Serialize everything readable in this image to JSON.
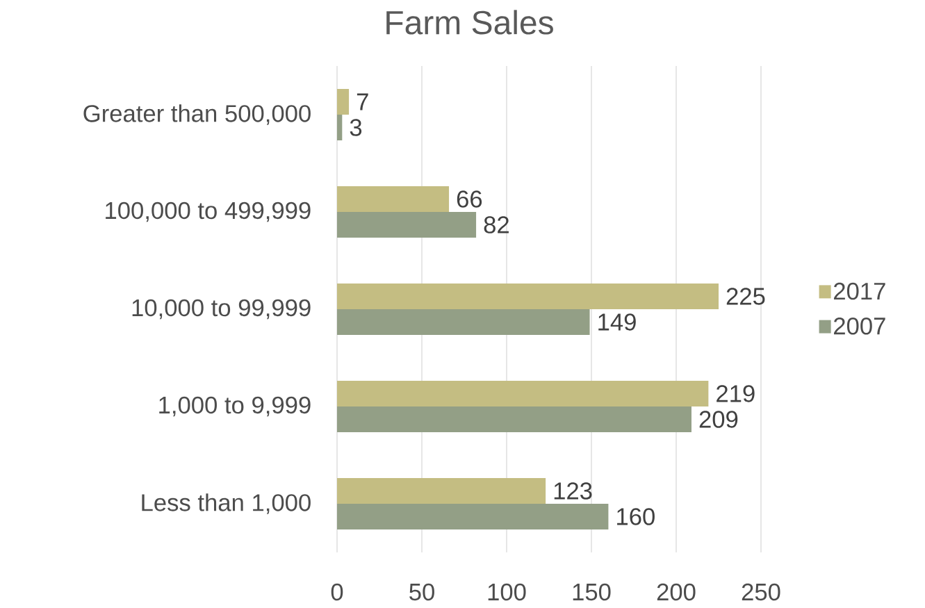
{
  "chart_data": {
    "type": "bar",
    "orientation": "horizontal",
    "title": "Farm Sales",
    "categories": [
      "Greater than 500,000",
      "100,000 to 499,999",
      "10,000 to 99,999",
      "1,000 to 9,999",
      "Less than 1,000"
    ],
    "series": [
      {
        "name": "2017",
        "color": "#c4bd82",
        "values": [
          7,
          66,
          225,
          219,
          123
        ]
      },
      {
        "name": "2007",
        "color": "#939f86",
        "values": [
          3,
          82,
          149,
          209,
          160
        ]
      }
    ],
    "xlim": [
      0,
      250
    ],
    "xticks": [
      0,
      50,
      100,
      150,
      200,
      250
    ],
    "grid": "x",
    "legend": "right",
    "data_labels": true
  }
}
